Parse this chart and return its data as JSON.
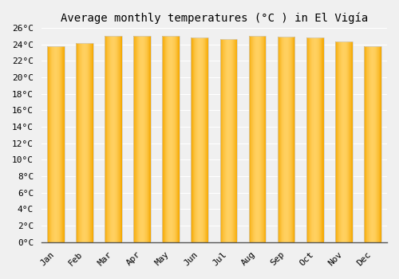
{
  "title": "Average monthly temperatures (°C ) in El Vigía",
  "months": [
    "Jan",
    "Feb",
    "Mar",
    "Apr",
    "May",
    "Jun",
    "Jul",
    "Aug",
    "Sep",
    "Oct",
    "Nov",
    "Dec"
  ],
  "values": [
    23.8,
    24.1,
    25.0,
    25.0,
    25.0,
    24.8,
    24.6,
    25.0,
    24.9,
    24.8,
    24.3,
    23.8
  ],
  "bar_color_center": "#FFD060",
  "bar_color_edge": "#F5A800",
  "bar_outline_color": "#CCCCCC",
  "ylim": [
    0,
    26
  ],
  "ytick_step": 2,
  "background_color": "#f0f0f0",
  "plot_bg_color": "#f0f0f0",
  "grid_color": "#ffffff",
  "title_fontsize": 10,
  "tick_fontsize": 8,
  "font_family": "monospace",
  "bar_width": 0.6
}
